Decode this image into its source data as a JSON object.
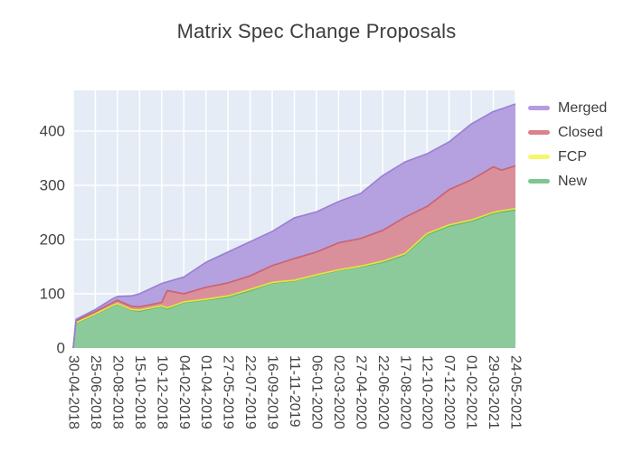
{
  "chart_data": {
    "type": "area",
    "stacked": true,
    "title": "Matrix Spec Change Proposals",
    "xlabel": "",
    "ylabel": "",
    "grid": true,
    "legend_position": "right",
    "plot_bg": "#e5ecf6",
    "grid_color": "#ffffff",
    "text_color": "#444444",
    "ylim": [
      0,
      475
    ],
    "yticks": [
      0,
      100,
      200,
      300,
      400
    ],
    "xticks": [
      "30-04-2018",
      "25-06-2018",
      "20-08-2018",
      "15-10-2018",
      "10-12-2018",
      "04-02-2019",
      "01-04-2019",
      "27-05-2019",
      "22-07-2019",
      "16-09-2019",
      "11-11-2019",
      "06-01-2020",
      "02-03-2020",
      "27-04-2020",
      "22-06-2020",
      "17-08-2020",
      "12-10-2020",
      "07-12-2020",
      "01-02-2021",
      "29-03-2021",
      "24-05-2021"
    ],
    "x": [
      "30-04-2018",
      "07-05-2018",
      "25-06-2018",
      "06-08-2018",
      "20-08-2018",
      "24-09-2018",
      "15-10-2018",
      "10-12-2018",
      "24-12-2018",
      "04-02-2019",
      "01-04-2019",
      "27-05-2019",
      "22-07-2019",
      "16-09-2019",
      "11-11-2019",
      "06-01-2020",
      "02-03-2020",
      "27-04-2020",
      "22-06-2020",
      "17-08-2020",
      "12-10-2020",
      "07-12-2020",
      "01-02-2021",
      "29-03-2021",
      "19-04-2021",
      "24-05-2021"
    ],
    "series": [
      {
        "name": "New",
        "fill": "#8cca9c",
        "line": "#5eb873",
        "values": [
          0,
          46,
          62,
          77,
          81,
          70,
          68,
          77,
          72,
          84,
          89,
          94,
          106,
          120,
          124,
          134,
          143,
          150,
          158,
          172,
          209,
          225,
          234,
          248,
          251,
          255
        ]
      },
      {
        "name": "FCP",
        "fill": "#f9f871",
        "line": "#e8e23e",
        "values": [
          0,
          1,
          1,
          1,
          1,
          1,
          2,
          1,
          2,
          1,
          1,
          2,
          2,
          1,
          1,
          1,
          1,
          1,
          2,
          2,
          2,
          2,
          2,
          2,
          2,
          2
        ]
      },
      {
        "name": "Closed",
        "fill": "#da909a",
        "line": "#cb6372",
        "values": [
          0,
          3,
          4,
          5,
          6,
          6,
          6,
          6,
          32,
          15,
          22,
          24,
          25,
          31,
          40,
          42,
          50,
          51,
          57,
          67,
          50,
          65,
          74,
          84,
          75,
          79
        ]
      },
      {
        "name": "Merged",
        "fill": "#b5a1e0",
        "line": "#9b80d4",
        "values": [
          0,
          3,
          4,
          7,
          7,
          19,
          24,
          35,
          16,
          31,
          46,
          57,
          63,
          63,
          75,
          74,
          76,
          83,
          101,
          102,
          97,
          88,
          103,
          102,
          113,
          114
        ]
      }
    ]
  },
  "legend": {
    "items": [
      {
        "label": "Merged",
        "color": "#b49ce0"
      },
      {
        "label": "Closed",
        "color": "#dc828b"
      },
      {
        "label": "FCP",
        "color": "#f8f66c"
      },
      {
        "label": "New",
        "color": "#7fc690"
      }
    ]
  }
}
